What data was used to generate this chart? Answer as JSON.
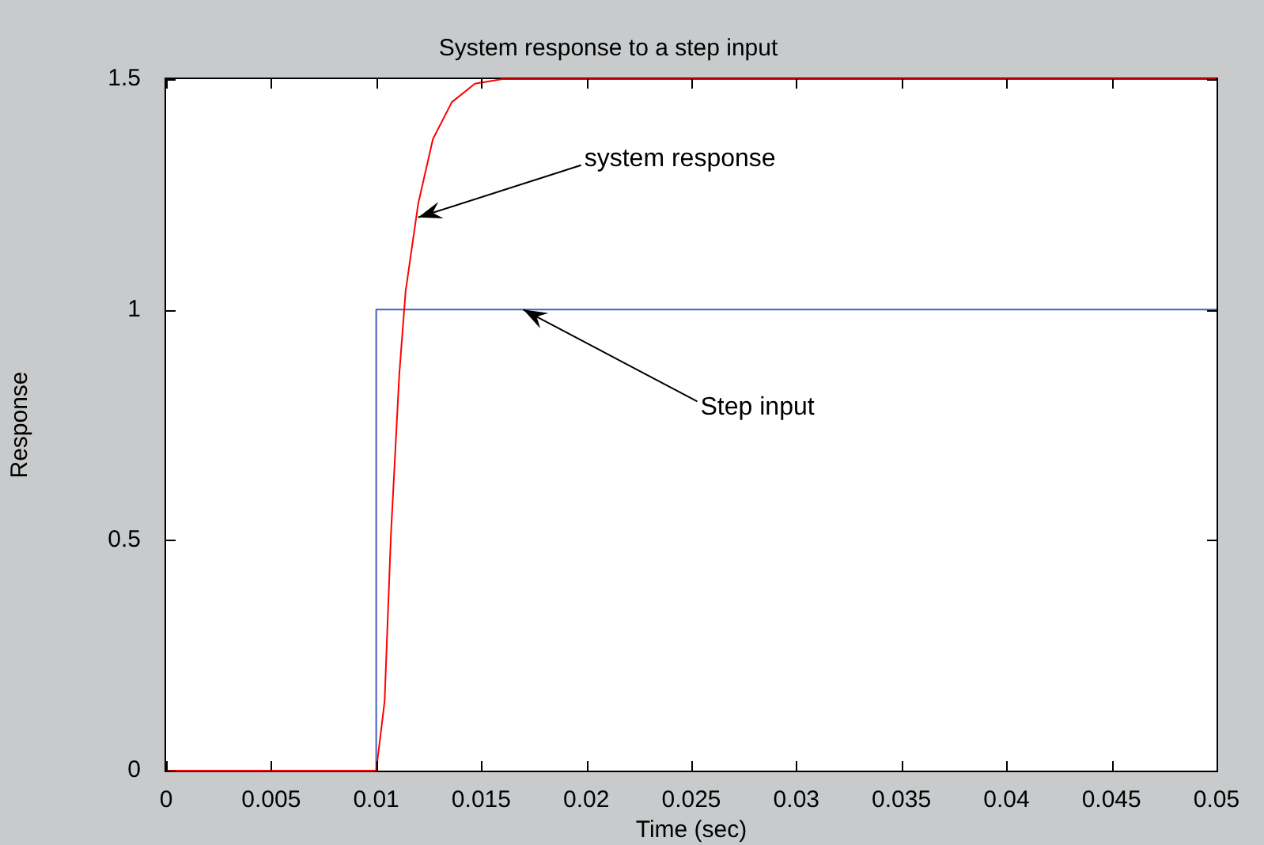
{
  "chart_data": {
    "type": "line",
    "title": "System response to a step input",
    "xlabel": "Time (sec)",
    "ylabel": "Response",
    "series": [
      {
        "type": "line",
        "color": "#ff0000",
        "x": [
          0,
          0.01,
          0.0104,
          0.0107,
          0.0111,
          0.0114,
          0.012,
          0.0127,
          0.0136,
          0.0147,
          0.016,
          0.017,
          0.05
        ],
        "values": [
          0,
          0,
          0.15,
          0.51,
          0.86,
          1.04,
          1.23,
          1.37,
          1.45,
          1.49,
          1.5,
          1.5,
          1.5
        ]
      },
      {
        "type": "step",
        "color": "#4060c0",
        "x": [
          0,
          0.01,
          0.05
        ],
        "values": [
          0,
          1,
          1
        ]
      }
    ],
    "annotations": [
      {
        "text": "system response",
        "x": 0.012,
        "y": 1.2
      },
      {
        "text": "Step input",
        "x": 0.017,
        "y": 1.0
      }
    ],
    "xlim": [
      0,
      0.05
    ],
    "xticks": [
      0,
      0.005,
      0.01,
      0.015,
      0.02,
      0.025,
      0.03,
      0.035,
      0.04,
      0.045,
      0.05
    ],
    "ylim": [
      0,
      1.5
    ],
    "yticks": [
      0,
      0.5,
      1,
      1.5
    ],
    "grid": false,
    "legend": false,
    "marker": "none",
    "line_style": "solid"
  }
}
